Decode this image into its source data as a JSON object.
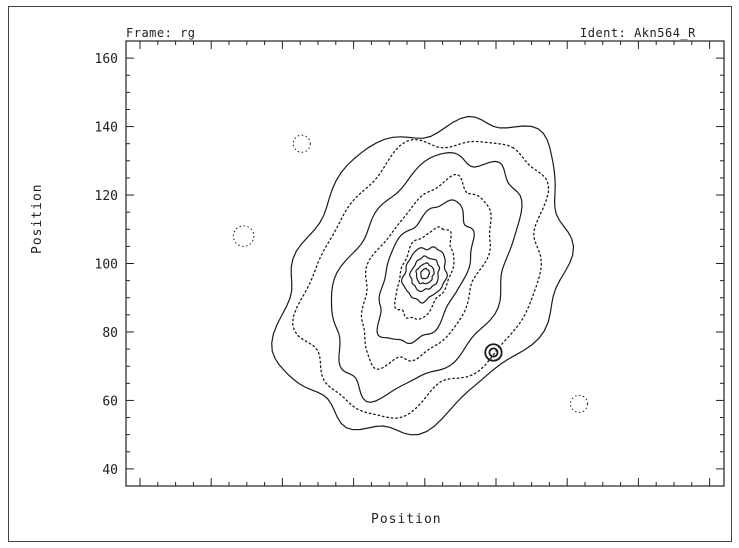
{
  "header": {
    "frame_label": "Frame: rg",
    "ident_label": "Ident: Akn564_R"
  },
  "chart_data": {
    "type": "contour",
    "xlabel": "Position",
    "ylabel": "Position",
    "ylim": [
      35,
      165
    ],
    "yticks": [
      40,
      60,
      80,
      100,
      120,
      140,
      160
    ],
    "xticks_labeled": false,
    "grid": false,
    "center": [
      97,
      97
    ],
    "contours": [
      {
        "style": "solid",
        "level": 1,
        "semi_major": 50,
        "semi_minor": 36,
        "angle_deg": 52
      },
      {
        "style": "dotted",
        "level": 2,
        "semi_major": 44,
        "semi_minor": 30,
        "angle_deg": 55
      },
      {
        "style": "solid",
        "level": 3,
        "semi_major": 38,
        "semi_minor": 22,
        "angle_deg": 60
      },
      {
        "style": "dotted",
        "level": 4,
        "semi_major": 29,
        "semi_minor": 15,
        "angle_deg": 63
      },
      {
        "style": "solid",
        "level": 5,
        "semi_major": 22,
        "semi_minor": 11,
        "angle_deg": 65
      },
      {
        "style": "dotted",
        "level": 6,
        "semi_major": 14,
        "semi_minor": 7,
        "angle_deg": 68
      },
      {
        "style": "solid",
        "level": 7,
        "semi_major": 8,
        "semi_minor": 6,
        "angle_deg": 70
      },
      {
        "style": "solid",
        "level": 8,
        "semi_major": 5,
        "semi_minor": 4,
        "angle_deg": 70
      },
      {
        "style": "solid",
        "level": 9,
        "semi_major": 3,
        "semi_minor": 2.5,
        "angle_deg": 70
      },
      {
        "style": "solid",
        "level": 10,
        "semi_major": 1.5,
        "semi_minor": 1.2,
        "angle_deg": 70
      }
    ],
    "features": [
      {
        "kind": "knot",
        "x": 117,
        "y": 74,
        "r": 2.4
      },
      {
        "kind": "knot",
        "x": 117,
        "y": 74,
        "r": 1.2
      },
      {
        "kind": "blob",
        "x": 44,
        "y": 108,
        "r": 3
      },
      {
        "kind": "blob",
        "x": 142,
        "y": 59,
        "r": 2.5
      },
      {
        "kind": "blob",
        "x": 61,
        "y": 135,
        "r": 2.5
      }
    ]
  }
}
